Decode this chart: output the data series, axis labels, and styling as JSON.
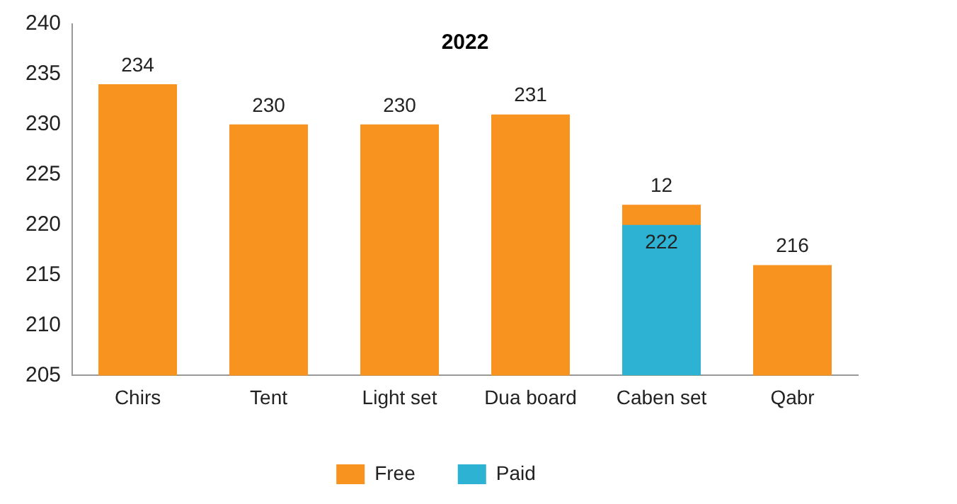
{
  "chart_data": {
    "type": "bar",
    "title": "2022",
    "categories": [
      "Chirs",
      "Tent",
      "Light set",
      "Dua board",
      "Caben set",
      "Qabr"
    ],
    "series": [
      {
        "name": "Free",
        "color": "#f7931e",
        "values": [
          234,
          230,
          230,
          231,
          222,
          216
        ],
        "value_labels": [
          "234",
          "230",
          "230",
          "231",
          null,
          "216"
        ]
      },
      {
        "name": "Paid",
        "color": "#2eb2d4",
        "values": [
          null,
          null,
          null,
          null,
          220,
          null
        ]
      }
    ],
    "annotations": [
      {
        "text": "12",
        "x": "Caben set",
        "y": 222
      },
      {
        "text": "222",
        "x": "Caben set",
        "y": 220
      }
    ],
    "ylim": [
      205,
      240
    ],
    "yticks": [
      205,
      210,
      215,
      220,
      225,
      230,
      235,
      240
    ],
    "grid": false,
    "legend": "bottom"
  }
}
